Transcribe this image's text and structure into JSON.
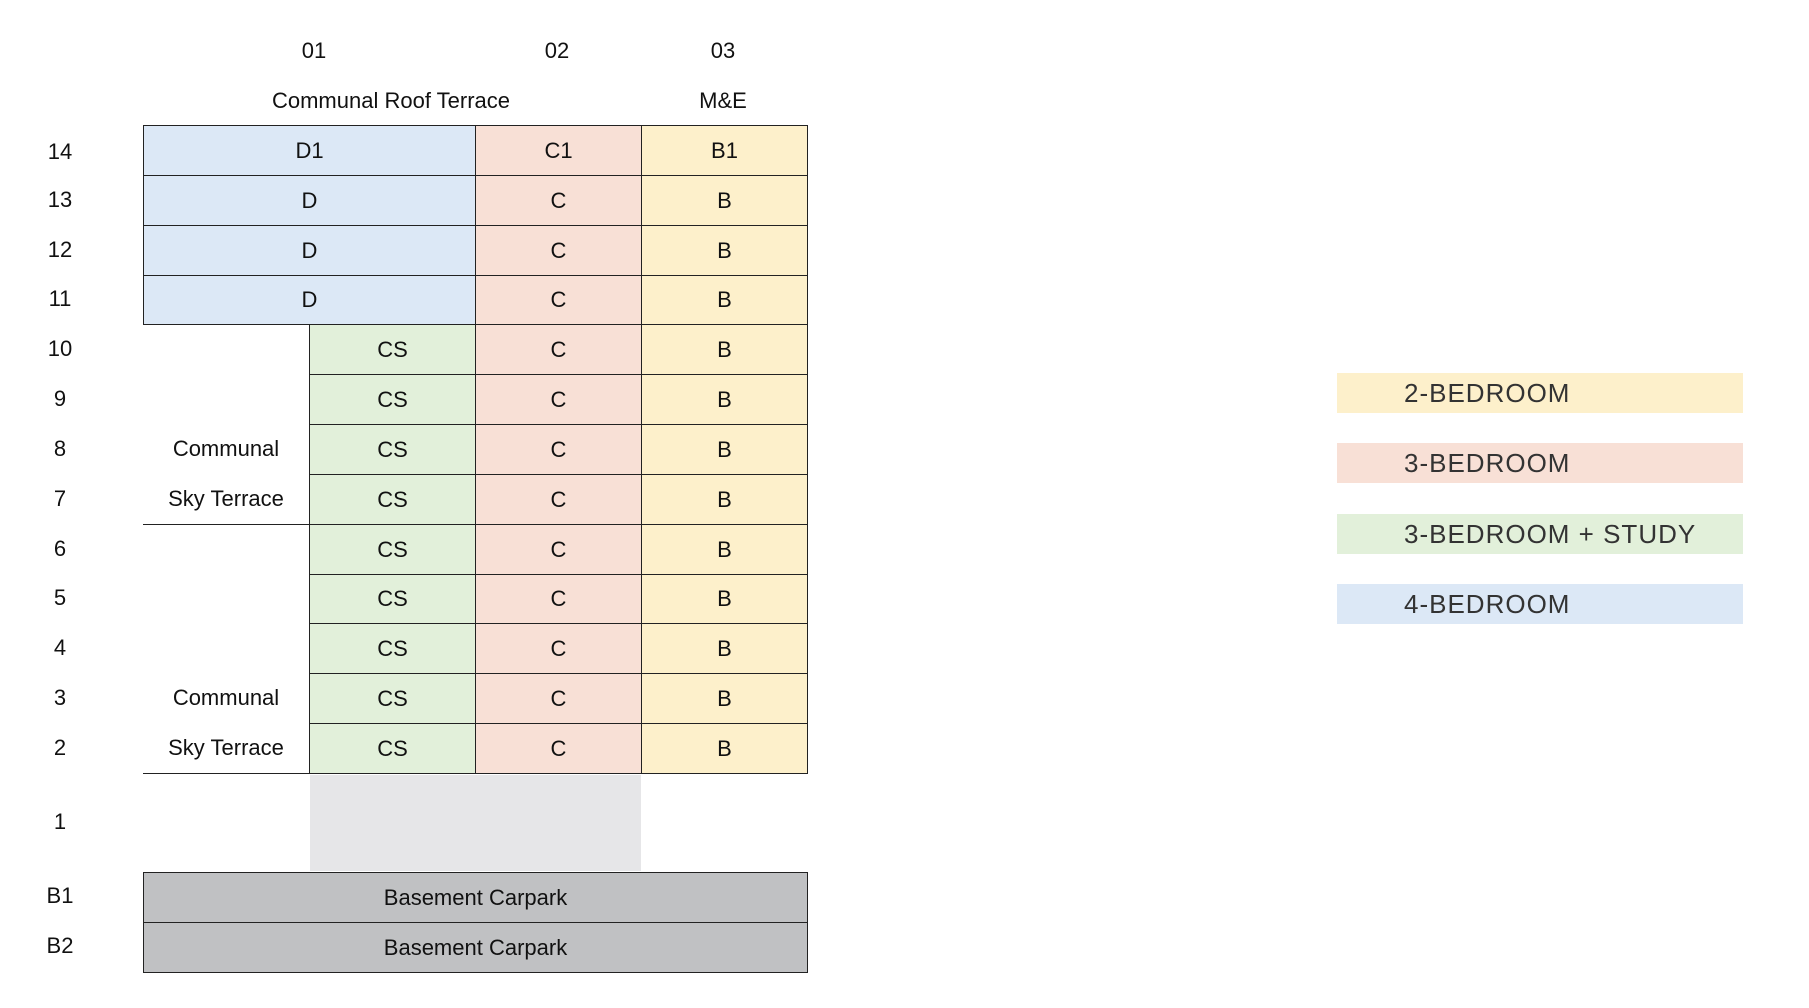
{
  "colors": {
    "two_bedroom": "#fdf0cb",
    "three_bedroom": "#f8e0d6",
    "three_bedroom_study": "#e2f0da",
    "four_bedroom": "#dce8f6",
    "void": "#e6e6e8",
    "basement": "#c0c1c3"
  },
  "columns": [
    "01",
    "02",
    "03"
  ],
  "roof": {
    "terrace": "Communal Roof Terrace",
    "me": "M&E"
  },
  "floors": [
    "14",
    "13",
    "12",
    "11",
    "10",
    "9",
    "8",
    "7",
    "6",
    "5",
    "4",
    "3",
    "2",
    "1",
    "B1",
    "B2"
  ],
  "units": {
    "14": {
      "col01": "D1",
      "col02": "C1",
      "col03": "B1"
    },
    "13": {
      "col01": "D",
      "col02": "C",
      "col03": "B"
    },
    "12": {
      "col01": "D",
      "col02": "C",
      "col03": "B"
    },
    "11": {
      "col01": "D",
      "col02": "C",
      "col03": "B"
    },
    "10": {
      "col01": "CS",
      "col02": "C",
      "col03": "B"
    },
    "9": {
      "col01": "CS",
      "col02": "C",
      "col03": "B"
    },
    "8": {
      "col01": "CS",
      "col02": "C",
      "col03": "B"
    },
    "7": {
      "col01": "CS",
      "col02": "C",
      "col03": "B"
    },
    "6": {
      "col01": "CS",
      "col02": "C",
      "col03": "B"
    },
    "5": {
      "col01": "CS",
      "col02": "C",
      "col03": "B"
    },
    "4": {
      "col01": "CS",
      "col02": "C",
      "col03": "B"
    },
    "3": {
      "col01": "CS",
      "col02": "C",
      "col03": "B"
    },
    "2": {
      "col01": "CS",
      "col02": "C",
      "col03": "B"
    }
  },
  "sky_terrace_upper": {
    "line1": "Communal",
    "line2": "Sky Terrace"
  },
  "sky_terrace_lower": {
    "line1": "Communal",
    "line2": "Sky Terrace"
  },
  "basement": {
    "b1": "Basement Carpark",
    "b2": "Basement Carpark"
  },
  "legend": [
    {
      "label": "2-BEDROOM",
      "color": "#fdf0cb"
    },
    {
      "label": "3-BEDROOM",
      "color": "#f8e0d6"
    },
    {
      "label": "3-BEDROOM + STUDY",
      "color": "#e2f0da"
    },
    {
      "label": "4-BEDROOM",
      "color": "#dce8f6"
    }
  ]
}
